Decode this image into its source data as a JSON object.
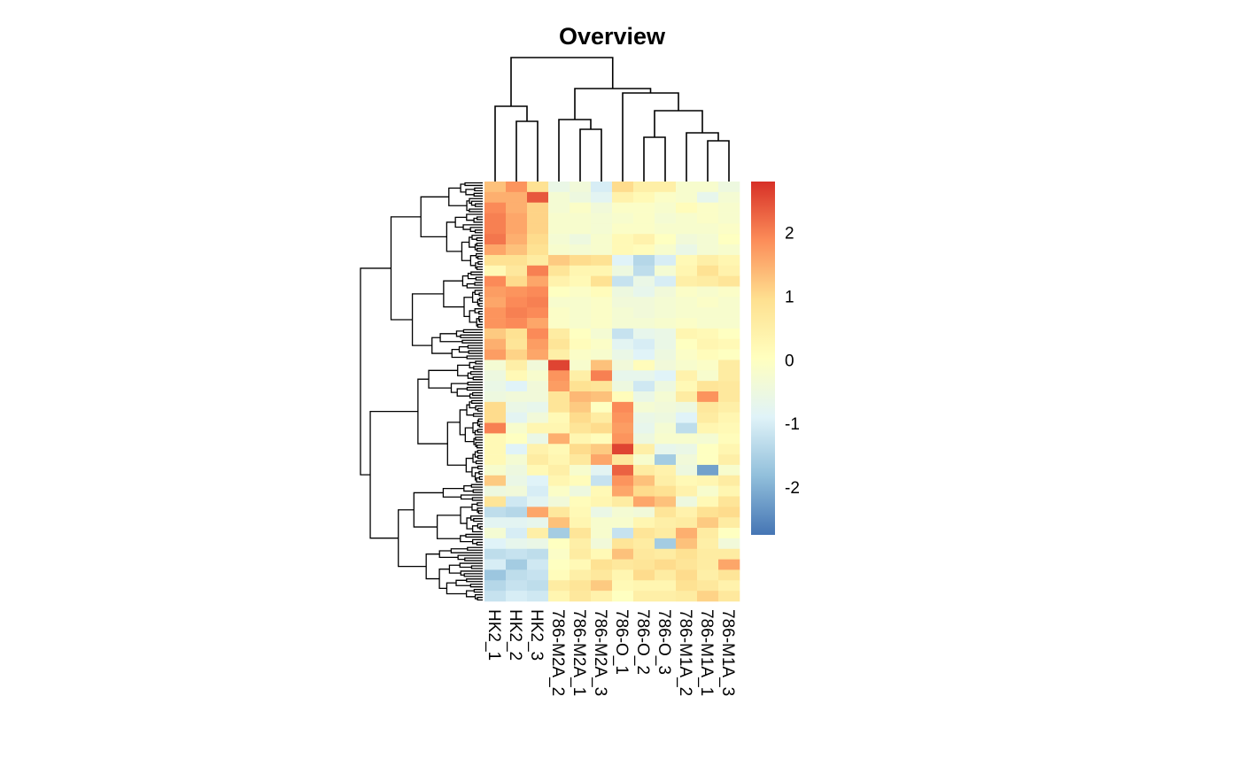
{
  "chart_data": {
    "type": "heatmap",
    "title": "Overview",
    "columns": [
      "HK2_1",
      "HK2_2",
      "HK2_3",
      "786-M2A_2",
      "786-M2A_1",
      "786-M2A_3",
      "786-O_1",
      "786-O_2",
      "786-O_3",
      "786-M1A_2",
      "786-M1A_1",
      "786-M1A_3"
    ],
    "color_scale": {
      "range": [
        -2.75,
        2.8
      ],
      "colors": [
        "#4575B4",
        "#91BFDB",
        "#E0F3F8",
        "#FFFFBF",
        "#FEE090",
        "#FC8D59",
        "#D73027"
      ],
      "ticks": [
        2,
        1,
        0,
        -1,
        -2
      ],
      "tick_labels": [
        "2",
        "1",
        "0",
        "-1",
        "-2"
      ]
    },
    "row_dendrogram": true,
    "column_dendrogram": true,
    "values": [
      [
        1.3,
        1.8,
        0.9,
        -0.6,
        -0.4,
        -1.0,
        1.0,
        0.5,
        0.5,
        -0.2,
        -0.2,
        -0.5
      ],
      [
        1.5,
        1.5,
        2.4,
        -0.3,
        -0.5,
        -0.8,
        0.4,
        0.2,
        -0.1,
        -0.2,
        -0.7,
        -0.3
      ],
      [
        1.9,
        1.5,
        1.1,
        -0.3,
        -0.1,
        -0.4,
        -0.1,
        -0.1,
        -0.2,
        0.1,
        -0.1,
        -0.2
      ],
      [
        2.0,
        1.6,
        1.1,
        -0.2,
        -0.2,
        -0.3,
        -0.2,
        -0.1,
        -0.3,
        -0.2,
        -0.1,
        -0.2
      ],
      [
        2.0,
        1.6,
        1.1,
        -0.2,
        -0.2,
        -0.3,
        -0.1,
        -0.1,
        -0.2,
        -0.2,
        -0.2,
        -0.1
      ],
      [
        2.1,
        1.5,
        1.0,
        -0.3,
        -0.5,
        -0.2,
        0.2,
        0.4,
        0.0,
        -0.4,
        -0.3,
        0.0
      ],
      [
        1.6,
        1.3,
        0.9,
        -0.2,
        -0.3,
        -0.2,
        0.2,
        0.1,
        -0.2,
        -0.6,
        -0.3,
        -0.2
      ],
      [
        0.9,
        0.9,
        0.6,
        1.2,
        1.0,
        0.9,
        -0.9,
        -1.4,
        -1.0,
        0.2,
        0.5,
        0.3
      ],
      [
        0.2,
        0.7,
        2.0,
        0.8,
        0.3,
        0.3,
        -0.5,
        -1.3,
        -0.3,
        0.3,
        0.9,
        0.4
      ],
      [
        1.9,
        1.0,
        1.6,
        0.4,
        0.2,
        0.9,
        -1.2,
        -0.6,
        -1.0,
        0.5,
        0.6,
        0.8
      ],
      [
        1.7,
        1.8,
        1.9,
        0.0,
        -0.1,
        0.1,
        -0.5,
        -0.7,
        -0.4,
        -0.1,
        -0.2,
        -0.1
      ],
      [
        1.6,
        1.9,
        2.0,
        -0.2,
        -0.2,
        -0.1,
        -0.4,
        -0.4,
        -0.3,
        -0.2,
        -0.1,
        -0.2
      ],
      [
        1.8,
        2.0,
        1.9,
        -0.1,
        -0.2,
        -0.1,
        -0.3,
        -0.4,
        -0.3,
        -0.2,
        -0.2,
        -0.2
      ],
      [
        1.8,
        1.9,
        1.6,
        -0.1,
        -0.2,
        -0.1,
        -0.3,
        -0.3,
        -0.2,
        -0.1,
        -0.2,
        -0.2
      ],
      [
        1.2,
        0.9,
        1.9,
        0.6,
        0.0,
        -0.3,
        -1.2,
        -0.7,
        -0.6,
        0.3,
        0.2,
        0.0
      ],
      [
        1.5,
        0.8,
        1.7,
        0.8,
        0.1,
        -0.1,
        -0.8,
        -1.0,
        -0.6,
        0.0,
        0.3,
        0.2
      ],
      [
        1.7,
        1.1,
        1.6,
        0.5,
        -0.1,
        -0.2,
        -0.6,
        -0.9,
        -0.5,
        -0.1,
        0.1,
        0.0
      ],
      [
        -0.3,
        0.5,
        -0.4,
        2.6,
        -0.2,
        1.3,
        -0.4,
        0.1,
        -0.4,
        -0.2,
        -0.1,
        0.6
      ],
      [
        -0.5,
        0.2,
        -0.2,
        1.8,
        0.5,
        2.0,
        -0.7,
        -0.7,
        -0.9,
        0.4,
        -0.2,
        0.6
      ],
      [
        -0.6,
        -0.9,
        -0.4,
        1.7,
        0.9,
        0.8,
        -0.5,
        -1.1,
        -0.5,
        0.2,
        0.8,
        0.7
      ],
      [
        -0.5,
        -0.4,
        -0.4,
        0.8,
        1.4,
        1.3,
        0.1,
        -0.6,
        -0.3,
        0.6,
        1.8,
        0.7
      ],
      [
        1.0,
        -0.6,
        -0.7,
        0.8,
        1.2,
        0.0,
        1.9,
        -0.3,
        -0.4,
        -0.5,
        0.7,
        0.5
      ],
      [
        1.0,
        -0.8,
        -0.4,
        0.2,
        1.0,
        0.6,
        1.8,
        -0.6,
        -0.5,
        -0.9,
        0.6,
        0.3
      ],
      [
        2.0,
        -0.2,
        0.3,
        0.3,
        0.8,
        1.0,
        1.7,
        -0.7,
        -0.3,
        -1.3,
        0.3,
        0.2
      ],
      [
        0.2,
        0.0,
        -0.6,
        1.5,
        0.3,
        0.1,
        1.8,
        -0.5,
        -0.2,
        -0.2,
        -0.3,
        0.1
      ],
      [
        0.2,
        -0.9,
        0.4,
        0.2,
        1.0,
        1.2,
        2.6,
        0.5,
        -0.7,
        -0.6,
        0.0,
        0.3
      ],
      [
        0.2,
        -0.3,
        0.6,
        0.3,
        0.7,
        1.6,
        0.7,
        -0.2,
        -1.6,
        -0.4,
        0.0,
        0.5
      ],
      [
        -0.2,
        -0.5,
        0.2,
        0.5,
        -0.2,
        -0.8,
        2.3,
        0.6,
        0.4,
        -0.5,
        -2.2,
        -0.2
      ],
      [
        1.2,
        -0.6,
        -0.9,
        0.3,
        0.1,
        -1.2,
        1.8,
        1.3,
        0.5,
        0.2,
        0.3,
        0.6
      ],
      [
        -0.5,
        -0.4,
        -1.0,
        -0.1,
        -0.5,
        0.2,
        1.6,
        1.0,
        0.9,
        0.4,
        -0.2,
        0.3
      ],
      [
        0.8,
        -1.1,
        -0.8,
        -0.4,
        0.1,
        0.3,
        0.6,
        1.6,
        1.3,
        -0.5,
        0.2,
        0.8
      ],
      [
        -1.3,
        -1.4,
        1.6,
        0.7,
        0.2,
        -0.6,
        -0.3,
        -0.4,
        0.8,
        0.4,
        0.9,
        1.0
      ],
      [
        -0.8,
        -0.8,
        -0.7,
        1.3,
        0.3,
        -0.2,
        -0.2,
        0.3,
        0.5,
        0.6,
        1.2,
        0.6
      ],
      [
        -0.3,
        -1.0,
        0.5,
        -1.6,
        0.8,
        -0.2,
        -1.2,
        0.8,
        0.6,
        1.5,
        0.6,
        0.0
      ],
      [
        -0.9,
        -0.7,
        -0.6,
        0.0,
        0.5,
        -0.4,
        0.8,
        0.6,
        -1.6,
        1.3,
        0.5,
        -0.4
      ],
      [
        -1.3,
        -1.2,
        -1.3,
        -0.1,
        0.6,
        0.2,
        1.3,
        0.7,
        0.6,
        0.9,
        0.6,
        0.6
      ],
      [
        -1.0,
        -1.6,
        -1.1,
        0.0,
        0.2,
        0.9,
        0.7,
        0.8,
        1.0,
        0.8,
        0.6,
        1.6
      ],
      [
        -1.7,
        -1.3,
        -1.2,
        0.1,
        0.5,
        0.7,
        0.3,
        1.0,
        0.6,
        1.0,
        0.5,
        0.8
      ],
      [
        -1.4,
        -1.2,
        -1.3,
        0.6,
        0.8,
        1.2,
        0.2,
        0.3,
        0.3,
        0.9,
        0.7,
        0.4
      ],
      [
        -1.2,
        -1.0,
        -1.1,
        0.3,
        0.7,
        0.4,
        0.0,
        0.5,
        0.5,
        0.6,
        1.1,
        0.7
      ]
    ]
  }
}
